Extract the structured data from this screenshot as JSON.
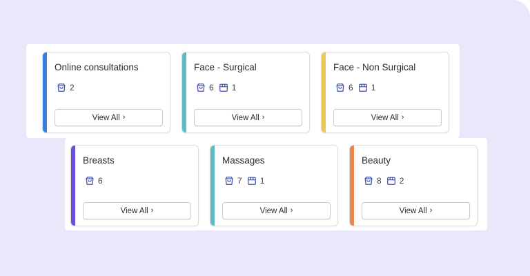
{
  "theme": {
    "background": "#ebe6f9",
    "icon_color": "#3f4fa8"
  },
  "cards": [
    {
      "title": "Online consultations",
      "accent": "#3b7de0",
      "stats": [
        {
          "icon": "bag-icon",
          "count": "2"
        }
      ],
      "button_label": "View All",
      "button_icon": "chevron-right-icon"
    },
    {
      "title": "Face - Surgical",
      "accent": "#5fbcc0",
      "stats": [
        {
          "icon": "bag-icon",
          "count": "6"
        },
        {
          "icon": "box-icon",
          "count": "1"
        }
      ],
      "button_label": "View All",
      "button_icon": "chevron-right-icon"
    },
    {
      "title": "Face - Non Surgical",
      "accent": "#eec65a",
      "stats": [
        {
          "icon": "bag-icon",
          "count": "6"
        },
        {
          "icon": "box-icon",
          "count": "1"
        }
      ],
      "button_label": "View All",
      "button_icon": "chevron-right-icon"
    },
    {
      "title": "Breasts",
      "accent": "#6c4fd6",
      "stats": [
        {
          "icon": "bag-icon",
          "count": "6"
        }
      ],
      "button_label": "View All",
      "button_icon": "chevron-right-icon"
    },
    {
      "title": "Massages",
      "accent": "#5fbcc0",
      "stats": [
        {
          "icon": "bag-icon",
          "count": "7"
        },
        {
          "icon": "box-icon",
          "count": "1"
        }
      ],
      "button_label": "View All",
      "button_icon": "chevron-right-icon"
    },
    {
      "title": "Beauty",
      "accent": "#e9874a",
      "stats": [
        {
          "icon": "bag-icon",
          "count": "8"
        },
        {
          "icon": "box-icon",
          "count": "2"
        }
      ],
      "button_label": "View All",
      "button_icon": "chevron-right-icon"
    }
  ]
}
